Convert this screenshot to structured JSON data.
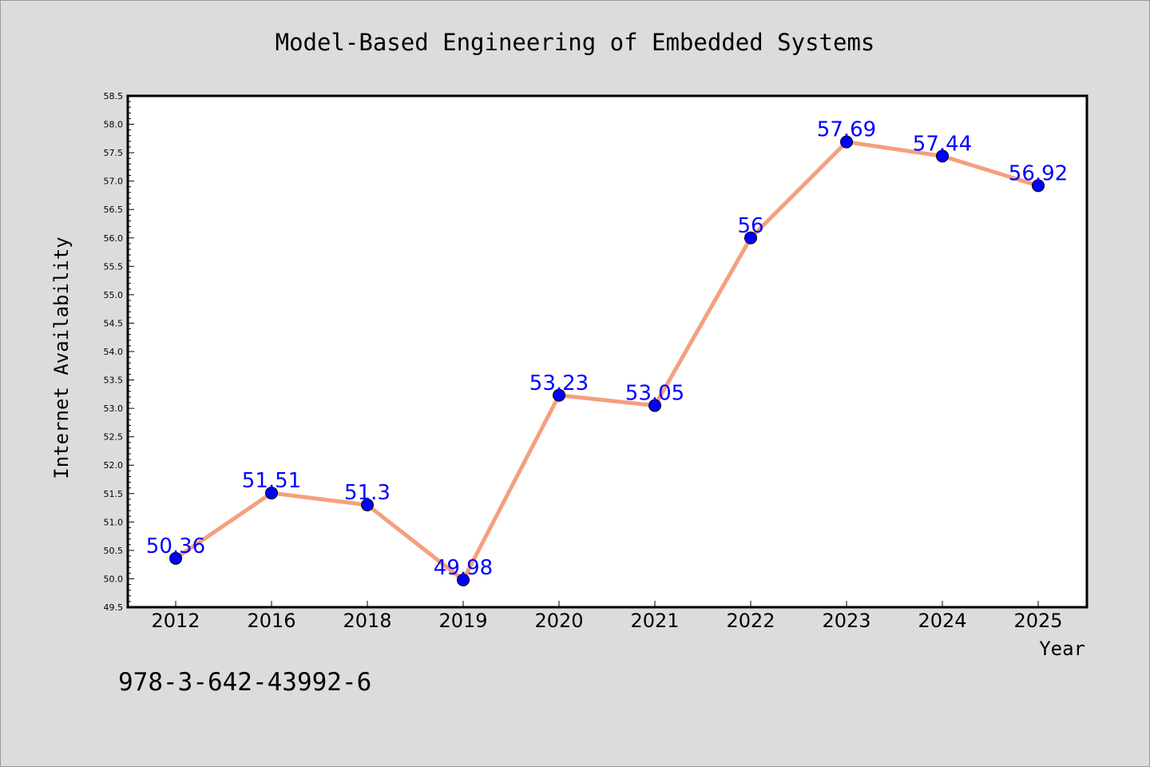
{
  "chart_data": {
    "type": "line",
    "title": "Model-Based Engineering of Embedded Systems",
    "xlabel": "Year",
    "ylabel": "Internet Availability",
    "categories": [
      "2012",
      "2016",
      "2018",
      "2019",
      "2020",
      "2021",
      "2022",
      "2023",
      "2024",
      "2025"
    ],
    "values": [
      50.36,
      51.51,
      51.3,
      49.98,
      53.23,
      53.05,
      56,
      57.69,
      57.44,
      56.92
    ],
    "data_labels": [
      "50.36",
      "51.51",
      "51.3",
      "49.98",
      "53.23",
      "53.05",
      "56",
      "57.69",
      "57.44",
      "56.92"
    ],
    "ylim": [
      49.5,
      58.5
    ],
    "yticks": [
      "49.5",
      "50.0",
      "50.5",
      "51.0",
      "51.5",
      "52.0",
      "52.5",
      "53.0",
      "53.5",
      "54.0",
      "54.5",
      "55.0",
      "55.5",
      "56.0",
      "56.5",
      "57.0",
      "57.5",
      "58.0",
      "58.5"
    ],
    "grid": false,
    "colors": {
      "line": "#f4a07e",
      "marker": "#0000ff",
      "label": "#0000ff",
      "background": "#dcdcdc",
      "plot_background": "#ffffff"
    }
  },
  "footer": {
    "isbn": "978-3-642-43992-6"
  }
}
